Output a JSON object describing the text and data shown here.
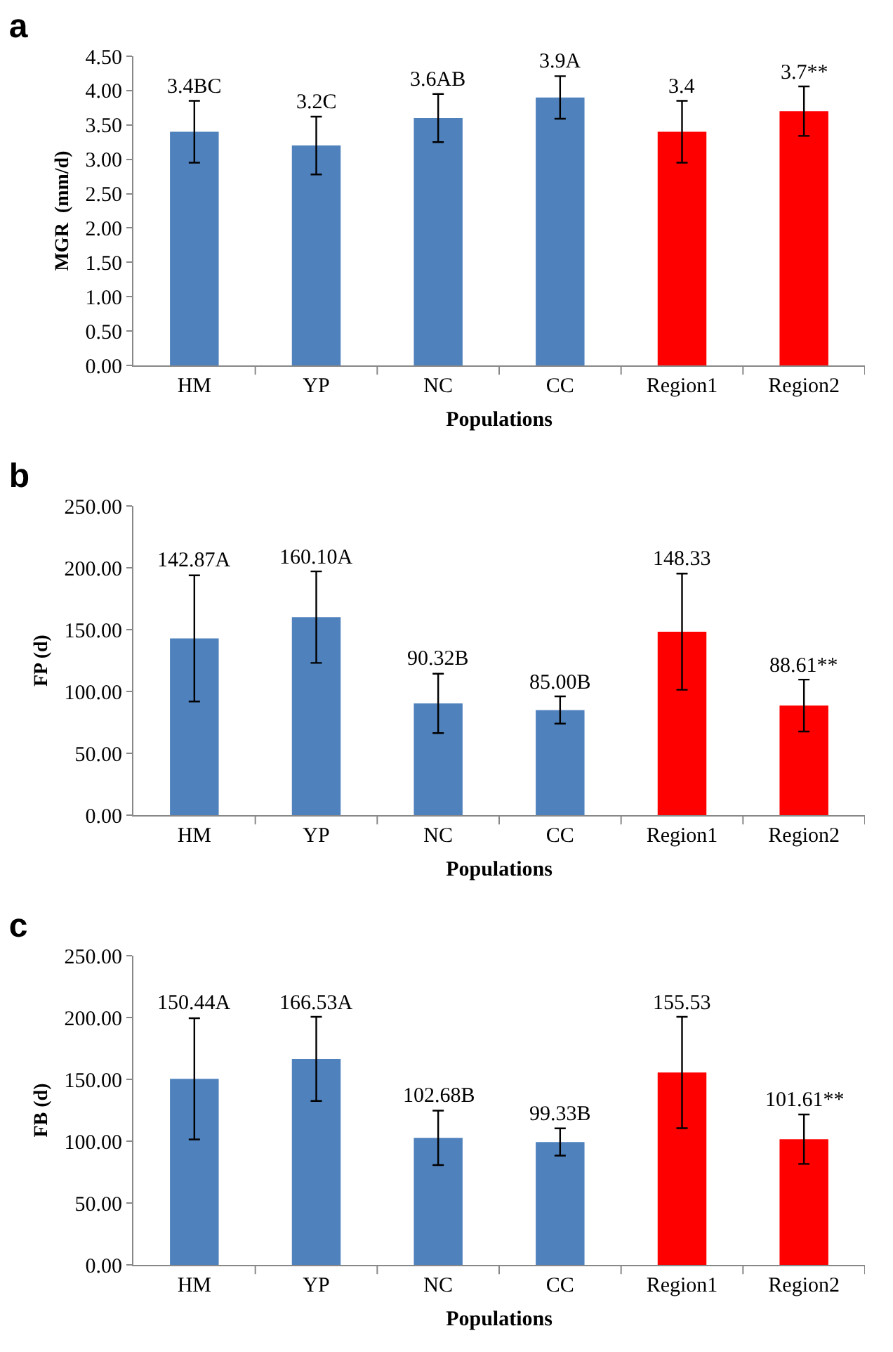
{
  "chart_data": [
    {
      "type": "bar",
      "title": "a",
      "xlabel": "Populations",
      "ylabel": "MGR  (mm/d)",
      "categories": [
        "HM",
        "YP",
        "NC",
        "CC",
        "Region1",
        "Region2"
      ],
      "values": [
        3.4,
        3.2,
        3.6,
        3.9,
        3.4,
        3.7
      ],
      "colors": [
        "#4f81bd",
        "#4f81bd",
        "#4f81bd",
        "#4f81bd",
        "#ff0000",
        "#ff0000"
      ],
      "errors": [
        0.45,
        0.42,
        0.35,
        0.31,
        0.45,
        0.36
      ],
      "value_labels": [
        "3.4BC",
        "3.2C",
        "3.6AB",
        "3.9A",
        "3.4",
        "3.7**"
      ],
      "ylim": [
        0,
        4.5
      ],
      "yticks": [
        {
          "value": 0,
          "label": "0.00"
        },
        {
          "value": 0.5,
          "label": "0.50"
        },
        {
          "value": 1,
          "label": "1.00"
        },
        {
          "value": 1.5,
          "label": "1.50"
        },
        {
          "value": 2,
          "label": "2.00"
        },
        {
          "value": 2.5,
          "label": "2.50"
        },
        {
          "value": 3,
          "label": "3.00"
        },
        {
          "value": 3.5,
          "label": "3.50"
        },
        {
          "value": 4,
          "label": "4.00"
        },
        {
          "value": 4.5,
          "label": "4.50"
        }
      ],
      "grid": false
    },
    {
      "type": "bar",
      "title": "b",
      "xlabel": "Populations",
      "ylabel": "FP (d)",
      "categories": [
        "HM",
        "YP",
        "NC",
        "CC",
        "Region1",
        "Region2"
      ],
      "values": [
        142.87,
        160.1,
        90.32,
        85.0,
        148.33,
        88.61
      ],
      "colors": [
        "#4f81bd",
        "#4f81bd",
        "#4f81bd",
        "#4f81bd",
        "#ff0000",
        "#ff0000"
      ],
      "errors": [
        51,
        37,
        24,
        11,
        47,
        21
      ],
      "value_labels": [
        "142.87A",
        "160.10A",
        "90.32B",
        "85.00B",
        "148.33",
        "88.61**"
      ],
      "ylim": [
        0,
        250
      ],
      "yticks": [
        {
          "value": 0,
          "label": "0.00"
        },
        {
          "value": 50,
          "label": "50.00"
        },
        {
          "value": 100,
          "label": "100.00"
        },
        {
          "value": 150,
          "label": "150.00"
        },
        {
          "value": 200,
          "label": "200.00"
        },
        {
          "value": 250,
          "label": "250.00"
        }
      ],
      "grid": false
    },
    {
      "type": "bar",
      "title": "c",
      "xlabel": "Populations",
      "ylabel": "FB (d)",
      "categories": [
        "HM",
        "YP",
        "NC",
        "CC",
        "Region1",
        "Region2"
      ],
      "values": [
        150.44,
        166.53,
        102.68,
        99.33,
        155.53,
        101.61
      ],
      "colors": [
        "#4f81bd",
        "#4f81bd",
        "#4f81bd",
        "#4f81bd",
        "#ff0000",
        "#ff0000"
      ],
      "errors": [
        49,
        34,
        22,
        11,
        45,
        20
      ],
      "value_labels": [
        "150.44A",
        "166.53A",
        "102.68B",
        "99.33B",
        "155.53",
        "101.61**"
      ],
      "ylim": [
        0,
        250
      ],
      "yticks": [
        {
          "value": 0,
          "label": "0.00"
        },
        {
          "value": 50,
          "label": "50.00"
        },
        {
          "value": 100,
          "label": "100.00"
        },
        {
          "value": 150,
          "label": "150.00"
        },
        {
          "value": 200,
          "label": "200.00"
        },
        {
          "value": 250,
          "label": "250.00"
        }
      ],
      "grid": false
    }
  ]
}
